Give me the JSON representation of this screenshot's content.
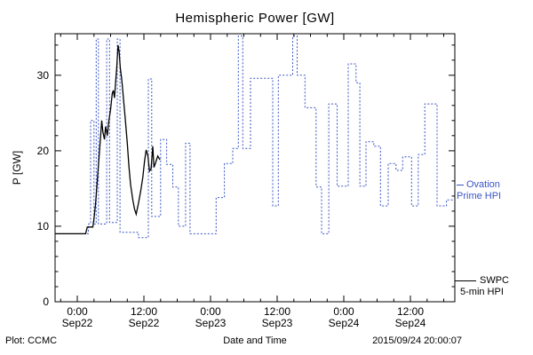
{
  "title": "Hemispheric Power [GW]",
  "ylabel": "P [GW]",
  "xlabel": "Date and Time",
  "footer": {
    "left": "Plot: CCMC",
    "right": "2015/09/24 20:00:07"
  },
  "legend": {
    "ovation": {
      "line1": "Ovation",
      "line2": "Prime HPI",
      "color": "#3a55c5"
    },
    "swpc": {
      "line1": "SWPC",
      "line2": "5-min HPI",
      "color": "#000000"
    }
  },
  "colors": {
    "ovation": "#3a55c5",
    "swpc": "#000000",
    "axis": "#000000",
    "background": "#ffffff"
  },
  "chart_data": {
    "type": "line",
    "title": "Hemispheric Power [GW]",
    "xlabel": "Date and Time",
    "ylabel": "P [GW]",
    "x_unit": "hours since 2015-09-22 00:00",
    "xlim": [
      -4,
      68
    ],
    "ylim": [
      0,
      35.5
    ],
    "yticks": [
      0,
      10,
      20,
      30
    ],
    "yminor": 2,
    "xminor": 3,
    "xticks": [
      {
        "t": 0,
        "line1": "0:00",
        "line2": "Sep22"
      },
      {
        "t": 12,
        "line1": "12:00",
        "line2": "Sep22"
      },
      {
        "t": 24,
        "line1": "0:00",
        "line2": "Sep23"
      },
      {
        "t": 36,
        "line1": "12:00",
        "line2": "Sep23"
      },
      {
        "t": 48,
        "line1": "0:00",
        "line2": "Sep24"
      },
      {
        "t": 60,
        "line1": "12:00",
        "line2": "Sep24"
      }
    ],
    "series": [
      {
        "name": "Ovation Prime HPI",
        "style": "step-dotted",
        "color": "#3a55c5",
        "points": [
          [
            -4,
            9
          ],
          [
            2,
            10.3
          ],
          [
            2.4,
            24
          ],
          [
            3,
            10.3
          ],
          [
            3.4,
            34.8
          ],
          [
            3.8,
            10.3
          ],
          [
            5.3,
            34.8
          ],
          [
            5.8,
            10.5
          ],
          [
            7.2,
            34.8
          ],
          [
            7.7,
            9.2
          ],
          [
            11,
            8.5
          ],
          [
            12.8,
            29.5
          ],
          [
            13.4,
            11.3
          ],
          [
            15,
            21.5
          ],
          [
            16.1,
            18.2
          ],
          [
            17.2,
            15.2
          ],
          [
            18.2,
            10
          ],
          [
            19.5,
            21
          ],
          [
            20.3,
            9
          ],
          [
            25,
            13.8
          ],
          [
            26.5,
            18.3
          ],
          [
            28,
            20.3
          ],
          [
            29,
            35.2
          ],
          [
            29.8,
            20.3
          ],
          [
            31.2,
            29.6
          ],
          [
            35.2,
            12.7
          ],
          [
            36.2,
            30
          ],
          [
            38.8,
            35.2
          ],
          [
            39.6,
            30
          ],
          [
            41,
            25.7
          ],
          [
            43,
            15.2
          ],
          [
            44,
            9
          ],
          [
            45.3,
            26.2
          ],
          [
            46.8,
            15.3
          ],
          [
            48.8,
            31.5
          ],
          [
            50.2,
            29
          ],
          [
            50.9,
            15.3
          ],
          [
            52,
            21.2
          ],
          [
            53.4,
            20.6
          ],
          [
            54.6,
            12.7
          ],
          [
            56,
            18.3
          ],
          [
            57.4,
            17.4
          ],
          [
            58.6,
            19.2
          ],
          [
            60.2,
            12.7
          ],
          [
            61.4,
            19.5
          ],
          [
            62.6,
            26.2
          ],
          [
            64.8,
            12.7
          ],
          [
            66.5,
            13.5
          ]
        ]
      },
      {
        "name": "SWPC 5-min HPI",
        "style": "line",
        "color": "#000000",
        "points": [
          [
            -4,
            9
          ],
          [
            1.5,
            9
          ],
          [
            1.8,
            9.9
          ],
          [
            2.8,
            9.9
          ],
          [
            3,
            11
          ],
          [
            3.3,
            13
          ],
          [
            3.6,
            16
          ],
          [
            3.9,
            19
          ],
          [
            4.2,
            22
          ],
          [
            4.4,
            24
          ],
          [
            4.6,
            22.5
          ],
          [
            4.9,
            21.5
          ],
          [
            5.1,
            23.2
          ],
          [
            5.4,
            22
          ],
          [
            5.7,
            24
          ],
          [
            6,
            25.5
          ],
          [
            6.3,
            27.6
          ],
          [
            6.5,
            28
          ],
          [
            6.7,
            27
          ],
          [
            6.9,
            29
          ],
          [
            7.1,
            31
          ],
          [
            7.35,
            34
          ],
          [
            7.55,
            33
          ],
          [
            7.75,
            31
          ],
          [
            8,
            29.5
          ],
          [
            8.3,
            27
          ],
          [
            8.6,
            24.5
          ],
          [
            9,
            21
          ],
          [
            9.3,
            18
          ],
          [
            9.6,
            15.5
          ],
          [
            10,
            13.5
          ],
          [
            10.3,
            12.3
          ],
          [
            10.6,
            11.6
          ],
          [
            11,
            13
          ],
          [
            11.4,
            14.6
          ],
          [
            11.8,
            16.5
          ],
          [
            12.1,
            18.5
          ],
          [
            12.4,
            20.1
          ],
          [
            12.7,
            19.4
          ],
          [
            13,
            17.3
          ],
          [
            13.3,
            17.6
          ],
          [
            13.6,
            20.6
          ],
          [
            13.8,
            17.8
          ],
          [
            14.1,
            18.4
          ],
          [
            14.5,
            19.3
          ],
          [
            14.9,
            18.8
          ]
        ]
      }
    ],
    "legend_position": "right-outside",
    "grid": false
  }
}
